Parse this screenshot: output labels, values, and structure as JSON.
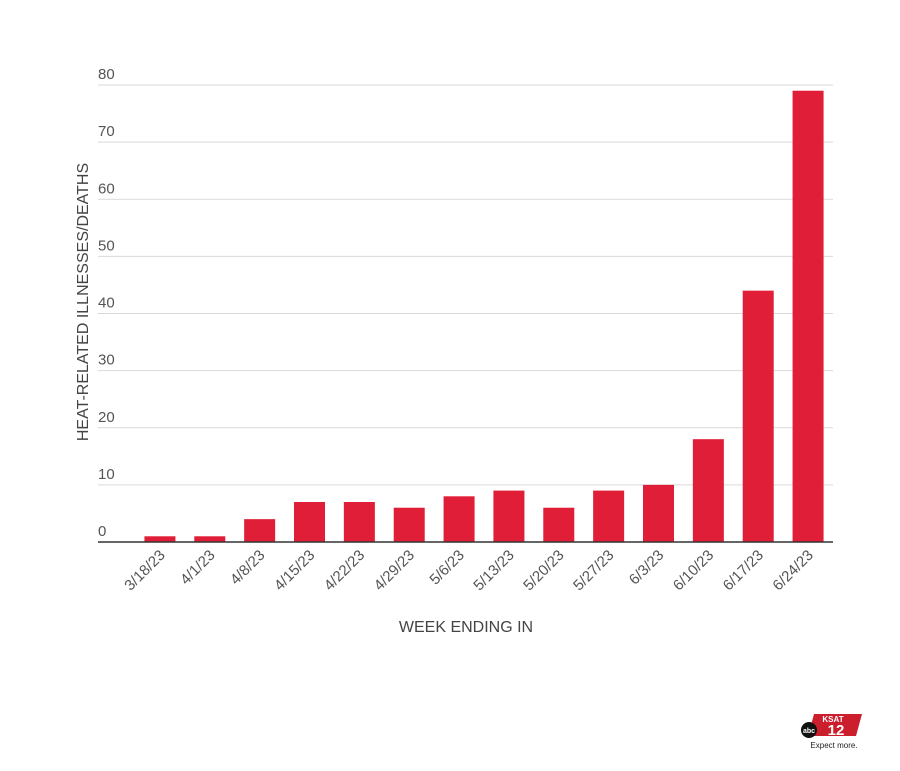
{
  "chart_data": {
    "type": "bar",
    "xlabel": "WEEK ENDING IN",
    "ylabel": "HEAT-RELATED ILLNESSES/DEATHS",
    "categories": [
      "3/18/23",
      "4/1/23",
      "4/8/23",
      "4/15/23",
      "4/22/23",
      "4/29/23",
      "5/6/23",
      "5/13/23",
      "5/20/23",
      "5/27/23",
      "6/3/23",
      "6/10/23",
      "6/17/23",
      "6/24/23"
    ],
    "values": [
      1,
      1,
      4,
      7,
      7,
      6,
      8,
      9,
      6,
      9,
      10,
      18,
      44,
      79
    ],
    "ylim": [
      0,
      80
    ],
    "yticks": [
      0,
      10,
      20,
      30,
      40,
      50,
      60,
      70,
      80
    ],
    "grid": true,
    "bar_color": "#e01e37"
  },
  "logo": {
    "network": "abc",
    "station": "KSAT",
    "channel": "12",
    "tagline": "Expect more."
  }
}
